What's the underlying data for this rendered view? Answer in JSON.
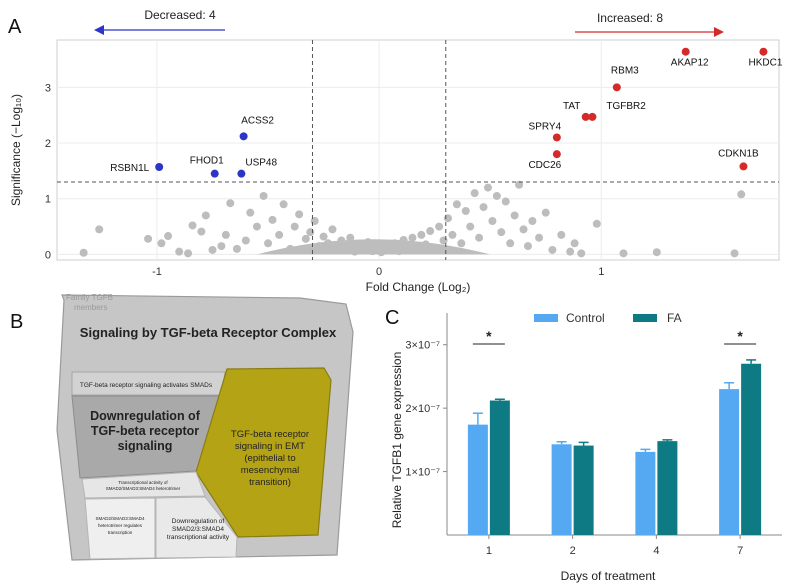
{
  "panels": {
    "a": "A",
    "b": "B",
    "c": "C"
  },
  "chart_data": [
    {
      "type": "scatter",
      "panel": "A",
      "xlabel": "Fold Change (Log₂)",
      "ylabel": "Significance (−Log₁₀)",
      "xlim": [
        -1.45,
        1.8
      ],
      "ylim": [
        -0.1,
        3.85
      ],
      "x_ticks": [
        -1,
        0,
        1
      ],
      "x_tick_labels": [
        "-1",
        "0",
        "1"
      ],
      "y_ticks": [
        0,
        1,
        2,
        3
      ],
      "y_tick_labels": [
        "0",
        "1",
        "2",
        "3"
      ],
      "fold_change_thresholds": [
        -0.3,
        0.3
      ],
      "significance_threshold": 1.3,
      "annotations": {
        "decreased": "Decreased: 4",
        "increased": "Increased: 8"
      },
      "colors": {
        "decreased": "#2b35c8",
        "increased": "#d42a2a",
        "not_significant": "#bdbdbd"
      },
      "significant_points": [
        {
          "label": "RSBN1L",
          "x": -0.99,
          "y": 1.57,
          "group": "decreased"
        },
        {
          "label": "FHOD1",
          "x": -0.74,
          "y": 1.45,
          "group": "decreased"
        },
        {
          "label": "USP48",
          "x": -0.62,
          "y": 1.45,
          "group": "decreased"
        },
        {
          "label": "ACSS2",
          "x": -0.61,
          "y": 2.12,
          "group": "decreased"
        },
        {
          "label": "SPRY4",
          "x": 0.8,
          "y": 2.1,
          "group": "increased"
        },
        {
          "label": "CDC26",
          "x": 0.8,
          "y": 1.8,
          "group": "increased"
        },
        {
          "label": "TAT",
          "x": 0.93,
          "y": 2.47,
          "group": "increased"
        },
        {
          "label": "TGFBR2",
          "x": 0.96,
          "y": 2.47,
          "group": "increased"
        },
        {
          "label": "RBM3",
          "x": 1.07,
          "y": 3.0,
          "group": "increased"
        },
        {
          "label": "AKAP12",
          "x": 1.38,
          "y": 3.64,
          "group": "increased"
        },
        {
          "label": "HKDC1",
          "x": 1.73,
          "y": 3.64,
          "group": "increased"
        },
        {
          "label": "CDKN1B",
          "x": 1.64,
          "y": 1.58,
          "group": "increased"
        }
      ],
      "background_points": [
        [
          -1.33,
          0.03
        ],
        [
          -1.26,
          0.45
        ],
        [
          -1.04,
          0.28
        ],
        [
          -0.98,
          0.2
        ],
        [
          -0.95,
          0.33
        ],
        [
          -0.9,
          0.05
        ],
        [
          -0.86,
          0.02
        ],
        [
          -0.84,
          0.52
        ],
        [
          -0.8,
          0.41
        ],
        [
          -0.78,
          0.7
        ],
        [
          -0.75,
          0.08
        ],
        [
          -0.71,
          0.15
        ],
        [
          -0.69,
          0.35
        ],
        [
          -0.67,
          0.92
        ],
        [
          -0.64,
          0.1
        ],
        [
          -0.6,
          0.25
        ],
        [
          -0.58,
          0.75
        ],
        [
          -0.55,
          0.5
        ],
        [
          -0.52,
          1.05
        ],
        [
          -0.5,
          0.2
        ],
        [
          -0.48,
          0.62
        ],
        [
          -0.45,
          0.35
        ],
        [
          -0.43,
          0.9
        ],
        [
          -0.4,
          0.1
        ],
        [
          -0.38,
          0.5
        ],
        [
          -0.36,
          0.72
        ],
        [
          -0.33,
          0.28
        ],
        [
          -0.31,
          0.4
        ],
        [
          -0.29,
          0.6
        ],
        [
          -0.27,
          0.15
        ],
        [
          -0.25,
          0.32
        ],
        [
          -0.23,
          0.2
        ],
        [
          -0.21,
          0.45
        ],
        [
          -0.19,
          0.08
        ],
        [
          -0.17,
          0.25
        ],
        [
          -0.15,
          0.12
        ],
        [
          -0.13,
          0.3
        ],
        [
          -0.11,
          0.05
        ],
        [
          -0.09,
          0.18
        ],
        [
          -0.07,
          0.1
        ],
        [
          -0.05,
          0.22
        ],
        [
          -0.03,
          0.06
        ],
        [
          -0.01,
          0.14
        ],
        [
          0.01,
          0.04
        ],
        [
          0.03,
          0.16
        ],
        [
          0.05,
          0.09
        ],
        [
          0.07,
          0.2
        ],
        [
          0.09,
          0.06
        ],
        [
          0.11,
          0.26
        ],
        [
          0.13,
          0.12
        ],
        [
          0.15,
          0.3
        ],
        [
          0.17,
          0.08
        ],
        [
          0.19,
          0.35
        ],
        [
          0.21,
          0.18
        ],
        [
          0.23,
          0.42
        ],
        [
          0.25,
          0.1
        ],
        [
          0.27,
          0.5
        ],
        [
          0.29,
          0.25
        ],
        [
          0.31,
          0.65
        ],
        [
          0.33,
          0.35
        ],
        [
          0.35,
          0.9
        ],
        [
          0.37,
          0.2
        ],
        [
          0.39,
          0.78
        ],
        [
          0.41,
          0.5
        ],
        [
          0.43,
          1.1
        ],
        [
          0.45,
          0.3
        ],
        [
          0.47,
          0.85
        ],
        [
          0.49,
          1.2
        ],
        [
          0.51,
          0.6
        ],
        [
          0.53,
          1.05
        ],
        [
          0.55,
          0.4
        ],
        [
          0.57,
          0.95
        ],
        [
          0.59,
          0.2
        ],
        [
          0.61,
          0.7
        ],
        [
          0.63,
          1.25
        ],
        [
          0.65,
          0.45
        ],
        [
          0.67,
          0.15
        ],
        [
          0.69,
          0.6
        ],
        [
          0.72,
          0.3
        ],
        [
          0.75,
          0.75
        ],
        [
          0.78,
          0.08
        ],
        [
          0.82,
          0.35
        ],
        [
          0.86,
          0.05
        ],
        [
          0.88,
          0.2
        ],
        [
          0.91,
          0.02
        ],
        [
          0.98,
          0.55
        ],
        [
          1.1,
          0.02
        ],
        [
          1.25,
          0.04
        ],
        [
          1.6,
          0.02
        ],
        [
          1.63,
          1.08
        ]
      ],
      "dense_cluster": {
        "x_range": [
          -0.55,
          0.5
        ],
        "y_range": [
          0,
          0.4
        ]
      }
    },
    {
      "type": "treemap",
      "panel": "B",
      "parent_label": "Signaling by TGF-beta Receptor Complex",
      "corner_text": [
        "Family TGFB",
        "members"
      ],
      "cells": [
        {
          "label": [
            "TGF-beta receptor signaling activates SMADs"
          ],
          "size": "small"
        },
        {
          "label": [
            "Downregulation of",
            "TGF-beta receptor",
            "signaling"
          ],
          "size": "large"
        },
        {
          "label": [
            "TGF-beta receptor",
            "signaling in EMT",
            "(epithelial to",
            "mesenchymal",
            "transition)"
          ],
          "size": "large",
          "highlight": "#b5a316"
        },
        {
          "label": [
            "Transcriptional activity of",
            "SMAD2/SMAD3:SMAD4 heterotrimer"
          ],
          "size": "tiny"
        },
        {
          "label": [
            "SMAD2/SMAD3:SMAD4",
            "heterotrimer regulates",
            "transcription"
          ],
          "size": "tiny"
        },
        {
          "label": [
            "Downregulation of",
            "SMAD2/3:SMAD4",
            "transcriptional activity"
          ],
          "size": "small"
        }
      ]
    },
    {
      "type": "bar",
      "panel": "C",
      "xlabel": "Days of treatment",
      "ylabel": "Relative TGFB1 gene expression",
      "categories": [
        "1",
        "2",
        "4",
        "7"
      ],
      "ylim": [
        0,
        3.5e-07
      ],
      "y_ticks": [
        1e-07,
        2e-07,
        3e-07
      ],
      "y_tick_labels": [
        "1×10⁻⁷",
        "2×10⁻⁷",
        "3×10⁻⁷"
      ],
      "series": [
        {
          "name": "Control",
          "color": "#55a8f2",
          "values": [
            1.74e-07,
            1.43e-07,
            1.31e-07,
            2.3e-07
          ],
          "errors": [
            1.8e-08,
            4e-09,
            4e-09,
            1e-08
          ]
        },
        {
          "name": "FA",
          "color": "#0e7a83",
          "values": [
            2.12e-07,
            1.41e-07,
            1.48e-07,
            2.7e-07
          ],
          "errors": [
            2e-09,
            5e-09,
            2e-09,
            6e-09
          ]
        }
      ],
      "significance": [
        {
          "category": "1",
          "mark": "*"
        },
        {
          "category": "7",
          "mark": "*"
        }
      ],
      "legend_position": "top"
    }
  ]
}
